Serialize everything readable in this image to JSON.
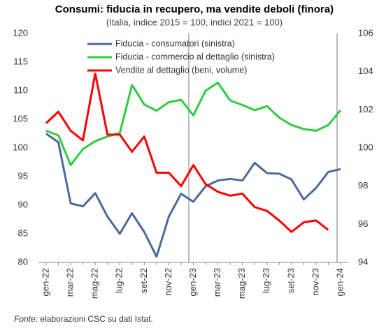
{
  "chart_data": {
    "type": "line",
    "title": "Consumi: fiducia in recupero, ma vendite deboli (finora)",
    "subtitle": "(Italia, indice 2015 = 100, indici 2021 = 100)",
    "source_label": "Fonte",
    "source_text": ": elaborazioni CSC su dati Istat.",
    "categories": [
      "gen-22",
      null,
      "mar-22",
      null,
      "mag-22",
      null,
      "lug-22",
      null,
      "set-22",
      null,
      "nov-22",
      null,
      "gen-23",
      null,
      "mar-23",
      null,
      "mag-23",
      null,
      "lug-23",
      null,
      "set-23",
      null,
      "nov-23",
      null,
      "gen-24"
    ],
    "series": [
      {
        "name": "Fiducia - consumatori (sinistra)",
        "color": "#4a6a9a",
        "axis": "y",
        "values": [
          102.5,
          101,
          90.3,
          89.8,
          92.1,
          88,
          85,
          88.6,
          85.3,
          81,
          88,
          92,
          90.6,
          93.3,
          94.3,
          94.6,
          94.3,
          97.4,
          95.6,
          95.5,
          94.5,
          91,
          93,
          95.8,
          96.3
        ]
      },
      {
        "name": "Fiducia - commercio al dettaglio (sinistra)",
        "color": "#2ecc40",
        "axis": "y",
        "values": [
          103,
          102.2,
          97,
          99.8,
          101.2,
          102,
          102.6,
          111,
          107.6,
          106.5,
          108,
          108.4,
          105.7,
          110,
          111.4,
          108.3,
          107.5,
          106.6,
          107.3,
          105.3,
          104,
          103.3,
          103,
          104,
          106.6
        ]
      },
      {
        "name": "Vendite al dettaglio (beni, volume)",
        "color": "#ff0000",
        "axis": "y2",
        "values": [
          101.3,
          101.9,
          100.9,
          100.4,
          103.9,
          100.7,
          100.7,
          99.8,
          100.6,
          98.7,
          98.7,
          98.0,
          99.1,
          98.1,
          97.7,
          97.5,
          97.6,
          96.9,
          96.7,
          96.2,
          95.6,
          96.1,
          96.2,
          95.7,
          null
        ]
      }
    ],
    "ylim": [
      80,
      120
    ],
    "yticks": [
      80,
      85,
      90,
      95,
      100,
      105,
      110,
      115,
      120
    ],
    "y2lim": [
      94,
      106
    ],
    "y2ticks": [
      94,
      96,
      98,
      100,
      102,
      104,
      106
    ]
  }
}
